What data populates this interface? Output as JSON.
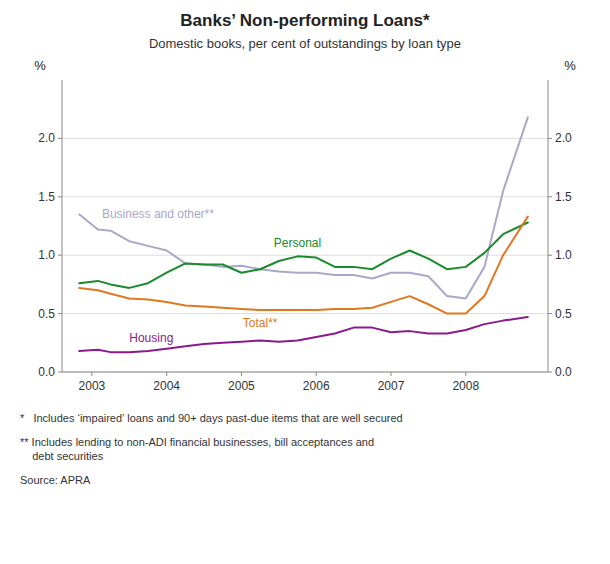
{
  "chart_data": {
    "type": "line",
    "title": "Banks’ Non-performing Loans*",
    "subtitle": "Domestic books, per cent of outstandings by loan type",
    "ylabel": "%",
    "y2label": "%",
    "footnotes": [
      "*   Includes ‘impaired’ loans and 90+ days past-due items that are well secured",
      "** Includes lending to non-ADI financial businesses, bill acceptances and\n    debt securities",
      "Source: APRA"
    ],
    "x": [
      2002.83,
      2003.08,
      2003.25,
      2003.5,
      2003.75,
      2004.0,
      2004.25,
      2004.5,
      2004.75,
      2005.0,
      2005.25,
      2005.5,
      2005.75,
      2006.0,
      2006.25,
      2006.5,
      2006.75,
      2007.0,
      2007.25,
      2007.5,
      2007.75,
      2008.0,
      2008.25,
      2008.5,
      2008.83
    ],
    "series": [
      {
        "name": "Business and other**",
        "color": "#a8a8cc",
        "values": [
          1.35,
          1.22,
          1.21,
          1.12,
          1.08,
          1.04,
          0.93,
          0.92,
          0.9,
          0.91,
          0.88,
          0.86,
          0.85,
          0.85,
          0.83,
          0.83,
          0.8,
          0.85,
          0.85,
          0.82,
          0.65,
          0.63,
          0.9,
          1.55,
          2.18
        ]
      },
      {
        "name": "Personal",
        "color": "#1a8a2a",
        "values": [
          0.76,
          0.78,
          0.75,
          0.72,
          0.76,
          0.85,
          0.93,
          0.92,
          0.92,
          0.85,
          0.88,
          0.95,
          0.99,
          0.98,
          0.9,
          0.9,
          0.88,
          0.97,
          1.04,
          0.97,
          0.88,
          0.9,
          1.02,
          1.18,
          1.28
        ]
      },
      {
        "name": "Total**",
        "color": "#E07820",
        "values": [
          0.72,
          0.7,
          0.67,
          0.63,
          0.62,
          0.6,
          0.57,
          0.56,
          0.55,
          0.54,
          0.53,
          0.53,
          0.53,
          0.53,
          0.54,
          0.54,
          0.55,
          0.6,
          0.65,
          0.58,
          0.5,
          0.5,
          0.65,
          1.0,
          1.33
        ]
      },
      {
        "name": "Housing",
        "color": "#8B1A8B",
        "values": [
          0.18,
          0.19,
          0.17,
          0.17,
          0.18,
          0.2,
          0.22,
          0.24,
          0.25,
          0.26,
          0.27,
          0.26,
          0.27,
          0.3,
          0.33,
          0.38,
          0.38,
          0.34,
          0.35,
          0.33,
          0.33,
          0.36,
          0.41,
          0.44,
          0.47
        ]
      }
    ],
    "xlim": [
      2002.6,
      2009.1
    ],
    "xticks": [
      2003,
      2004,
      2005,
      2006,
      2007,
      2008
    ],
    "ylim": [
      0.0,
      2.5
    ],
    "yticks": [
      {
        "value": 0.0,
        "label": "0.0"
      },
      0.5,
      {
        "value": 1.0,
        "label": "1.0"
      },
      1.5,
      {
        "value": 2.0,
        "label": "2.0"
      }
    ],
    "y2lim": [
      0.0,
      2.5
    ],
    "y2ticks": [
      {
        "value": 0.0,
        "label": "0.0"
      },
      0.5,
      {
        "value": 1.0,
        "label": "1.0"
      },
      1.5,
      {
        "value": 2.0,
        "label": "2.0"
      }
    ],
    "grid": true
  }
}
